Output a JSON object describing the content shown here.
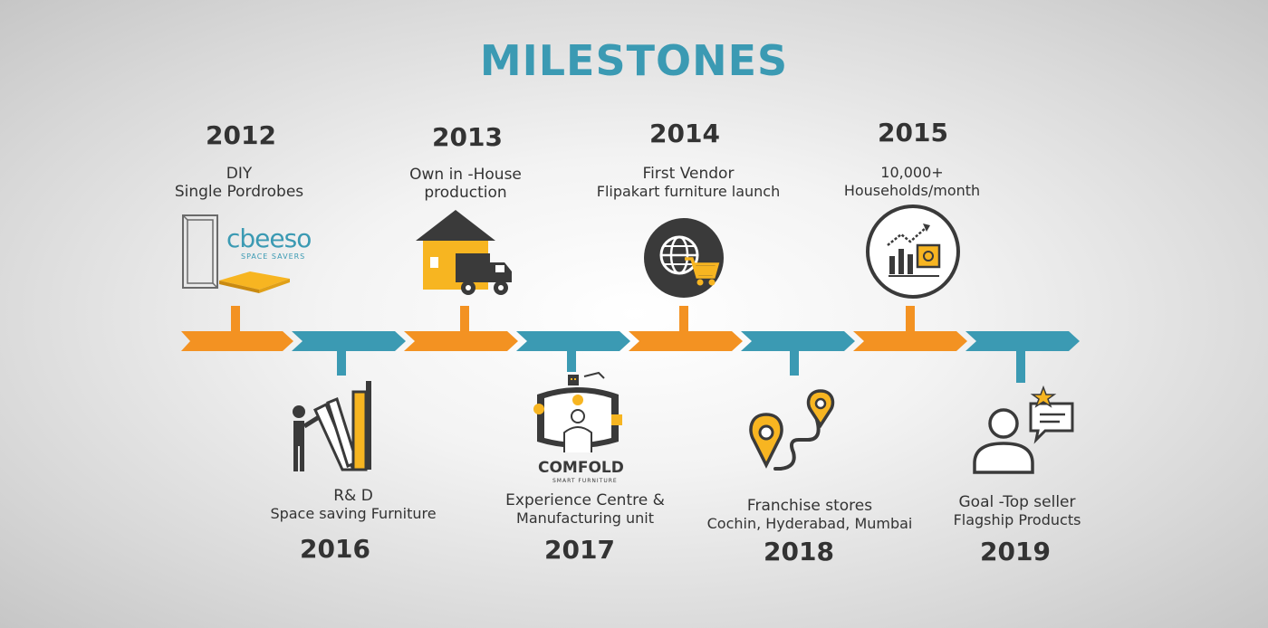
{
  "title": "MILESTONES",
  "colors": {
    "accent": "#3b9ab3",
    "orange": "#f39222",
    "teal": "#3b9ab3",
    "yellow": "#f7b521",
    "dark": "#3a3a3a"
  },
  "milestones_top": [
    {
      "year": "2012",
      "line1": "DIY",
      "line2": "Single Pordrobes",
      "icon": "wardrobe-logo-icon"
    },
    {
      "year": "2013",
      "line1": "Own  in -House",
      "line2": "production",
      "icon": "warehouse-truck-icon"
    },
    {
      "year": "2014",
      "line1": "First Vendor",
      "line2": "Flipakart furniture launch",
      "icon": "globe-cart-icon"
    },
    {
      "year": "2015",
      "line1": "10,000+",
      "line2": "Households/month",
      "icon": "growth-chart-icon"
    }
  ],
  "milestones_bottom": [
    {
      "year": "2016",
      "line1": "R& D",
      "line2": "Space saving Furniture",
      "icon": "research-person-icon"
    },
    {
      "year": "2017",
      "line1": "Experience Centre &",
      "line2": "Manufacturing unit",
      "icon": "experience-centre-icon"
    },
    {
      "year": "2018",
      "line1": "Franchise stores",
      "line2": "Cochin, Hyderabad, Mumbai",
      "icon": "route-pins-icon"
    },
    {
      "year": "2019",
      "line1": "Goal -Top seller",
      "line2": "Flagship Products",
      "icon": "user-star-icon"
    }
  ],
  "logos": {
    "cbeeso_name": "cbeeso",
    "cbeeso_tagline": "SPACE SAVERS",
    "comfold_name": "COMFOLD",
    "comfold_tagline": "SMART FURNITURE"
  }
}
